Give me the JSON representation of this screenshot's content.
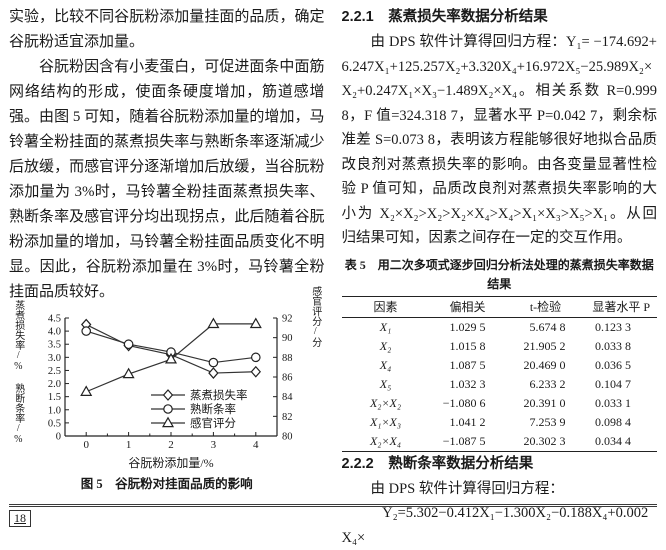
{
  "page": {
    "page_number": "18"
  },
  "left_column": {
    "para1": "实验，比较不同谷朊粉添加量挂面的品质，确定谷朊粉适宜添加量。",
    "para2": "谷朊粉因含有小麦蛋白，可促进面条中面筋网络结构的形成，使面条硬度增加，筋道感增强。由图 5 可知，随着谷朊粉添加量的增加，马铃薯全粉挂面的蒸煮损失率与熟断条率逐渐减少后放缓，而感官评分逐渐增加后放缓，当谷朊粉添加量为 3%时，马铃薯全粉挂面蒸煮损失率、熟断条率及感官评分均出现拐点，此后随着谷朊粉添加量的增加，马铃薯全粉挂面品质变化不明显。因此，谷朊粉添加量在 3%时，马铃薯全粉挂面品质较好。",
    "figure_caption": "图 5　谷朊粉对挂面品质的影响"
  },
  "chart_data": {
    "type": "line",
    "x": [
      0,
      1,
      2,
      3,
      4
    ],
    "xlabel": "谷朊粉添加量/%",
    "ylabel_left": "蒸煮损失率/% 熟断条率/%",
    "ylabel_right": "感官评分/分",
    "ylim_left": [
      0,
      4.5
    ],
    "yticks_left": [
      0,
      0.5,
      1.0,
      1.5,
      2.0,
      2.5,
      3.0,
      3.5,
      4.0,
      4.5
    ],
    "ylim_right": [
      80,
      92
    ],
    "yticks_right": [
      80,
      82,
      84,
      86,
      88,
      90,
      92
    ],
    "grid": false,
    "legend_position": "inside-lower-center",
    "series": [
      {
        "name": "蒸煮损失率",
        "axis": "left",
        "marker": "diamond",
        "values": [
          4.25,
          3.45,
          3.1,
          2.4,
          2.45
        ]
      },
      {
        "name": "熟断条率",
        "axis": "left",
        "marker": "circle",
        "values": [
          4.0,
          3.5,
          3.2,
          2.8,
          3.0
        ]
      },
      {
        "name": "感官评分",
        "axis": "right",
        "marker": "triangle",
        "values": [
          84.5,
          86.3,
          87.8,
          91.4,
          91.4
        ]
      }
    ],
    "line_color": "#333333"
  },
  "right_column": {
    "section_221_heading": "2.2.1　蒸煮损失率数据分析结果",
    "para_221": "由 DPS 软件计算得回归方程：Y₁= −174.692+6.247X₁+125.257X₂+3.320X₄+16.972X₅−25.989X₂×X₂+0.247X₁×X₃−1.489X₂×X₄。相关系数 R=0.999 8，F 值=324.318 7，显著水平 P=0.042 7，剩余标准差 S=0.073 8，表明该方程能够很好地拟合品质改良剂对蒸煮损失率的影响。由各变量显著性检验 P 值可知，品质改良剂对蒸煮损失率影响的大小为 X₂×X₂>X₂>X₂×X₄>X₄>X₁×X₃>X₅>X₁。从回归结果可知，因素之间存在一定的交互作用。",
    "table": {
      "title": "表 5　用二次多项式逐步回归分析法处理的蒸煮损失率数据结果",
      "headers": [
        "因素",
        "偏相关",
        "t-检验",
        "显著水平 P"
      ],
      "rows": [
        [
          "X₁",
          "1.029 5",
          "5.674 8",
          "0.123 3"
        ],
        [
          "X₂",
          "1.015 8",
          "21.905 2",
          "0.033 8"
        ],
        [
          "X₄",
          "1.087 5",
          "20.469 0",
          "0.036 5"
        ],
        [
          "X₅",
          "1.032 3",
          "6.233 2",
          "0.104 7"
        ],
        [
          "X₂×X₂",
          "−1.080 6",
          "20.391 0",
          "0.033 1"
        ],
        [
          "X₁×X₃",
          "1.041 2",
          "7.253 9",
          "0.098 4"
        ],
        [
          "X₂×X₄",
          "−1.087 5",
          "20.302 3",
          "0.034 4"
        ]
      ]
    },
    "section_222_heading": "2.2.2　熟断条率数据分析结果",
    "para_222_line1": "由 DPS 软件计算得回归方程：",
    "para_222_line2": "Y₂=5.302−0.412X₁−1.300X₂−0.188X₄+0.002X₄×"
  }
}
